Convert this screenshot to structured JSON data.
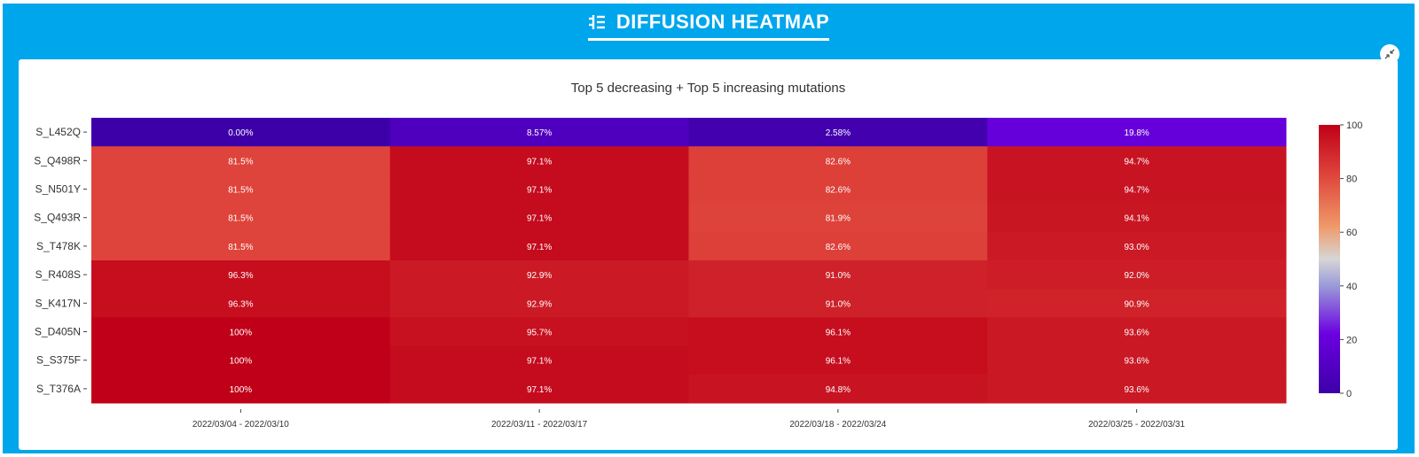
{
  "header": {
    "title": "DIFFUSION HEATMAP",
    "icon": "filter-settings-icon",
    "collapse_icon": "collapse-arrows-icon"
  },
  "colors": {
    "frame_blue": "#00a6ec",
    "colorscale": [
      "#3d00a8",
      "#6b00e0",
      "#9a9ad8",
      "#d6d6d6",
      "#ef9a6a",
      "#e04a3e",
      "#c00018"
    ]
  },
  "chart_data": {
    "type": "heatmap",
    "title": "Top 5 decreasing + Top 5 increasing mutations",
    "x_categories": [
      "2022/03/04 - 2022/03/10",
      "2022/03/11 - 2022/03/17",
      "2022/03/18 - 2022/03/24",
      "2022/03/25 - 2022/03/31"
    ],
    "y_categories": [
      "S_L452Q",
      "S_Q498R",
      "S_N501Y",
      "S_Q493R",
      "S_T478K",
      "S_R408S",
      "S_K417N",
      "S_D405N",
      "S_S375F",
      "S_T376A"
    ],
    "values": [
      [
        0.0,
        8.57,
        2.58,
        19.8
      ],
      [
        81.5,
        97.1,
        82.6,
        94.7
      ],
      [
        81.5,
        97.1,
        82.6,
        94.7
      ],
      [
        81.5,
        97.1,
        81.9,
        94.1
      ],
      [
        81.5,
        97.1,
        82.6,
        93.0
      ],
      [
        96.3,
        92.9,
        91.0,
        92.0
      ],
      [
        96.3,
        92.9,
        91.0,
        90.9
      ],
      [
        100,
        95.7,
        96.1,
        93.6
      ],
      [
        100,
        97.1,
        96.1,
        93.6
      ],
      [
        100,
        97.1,
        94.8,
        93.6
      ]
    ],
    "cell_labels": [
      [
        "0.00%",
        "8.57%",
        "2.58%",
        "19.8%"
      ],
      [
        "81.5%",
        "97.1%",
        "82.6%",
        "94.7%"
      ],
      [
        "81.5%",
        "97.1%",
        "82.6%",
        "94.7%"
      ],
      [
        "81.5%",
        "97.1%",
        "81.9%",
        "94.1%"
      ],
      [
        "81.5%",
        "97.1%",
        "82.6%",
        "93.0%"
      ],
      [
        "96.3%",
        "92.9%",
        "91.0%",
        "92.0%"
      ],
      [
        "96.3%",
        "92.9%",
        "91.0%",
        "90.9%"
      ],
      [
        "100%",
        "95.7%",
        "96.1%",
        "93.6%"
      ],
      [
        "100%",
        "97.1%",
        "96.1%",
        "93.6%"
      ],
      [
        "100%",
        "97.1%",
        "94.8%",
        "93.6%"
      ]
    ],
    "zlim": [
      0,
      100
    ],
    "colorbar_ticks": [
      "0",
      "20",
      "40",
      "60",
      "80",
      "100"
    ]
  }
}
